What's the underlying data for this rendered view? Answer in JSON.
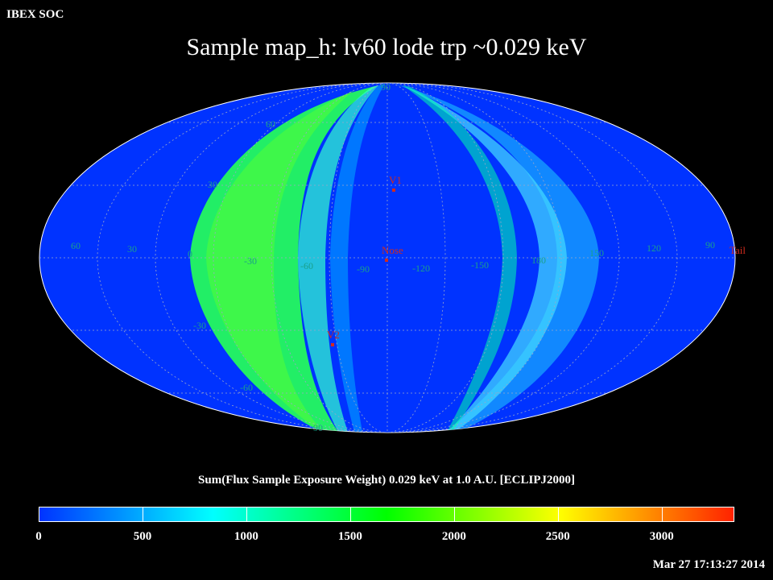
{
  "header": {
    "left_label": "IBEX SOC"
  },
  "map": {
    "title": "Sample map_h: lv60 lode trp ~0.029 keV",
    "projection": "Mollweide (Hammer-type) ellipse",
    "background_color": "#0033ff",
    "longitude_labels": [
      "60",
      "30",
      "0",
      "-30",
      "-60",
      "-90",
      "-120",
      "-150",
      "180",
      "150",
      "120",
      "90"
    ],
    "latitude_labels_top": [
      "90",
      "60",
      "30"
    ],
    "latitude_labels_bottom": [
      "-30",
      "-60",
      "-90"
    ],
    "markers": [
      {
        "label": "V1",
        "color": "#d22b1e"
      },
      {
        "label": "Nose",
        "color": "#d22b1e"
      },
      {
        "label": "V2",
        "color": "#d22b1e"
      },
      {
        "label": "Tail",
        "color": "#d22b1e"
      }
    ]
  },
  "colorbar": {
    "label": "Sum(Flux Sample Exposure Weight)  0.029 keV at 1.0 A.U. [ECLIPJ2000]",
    "ticks": [
      "0",
      "500",
      "1000",
      "1500",
      "2000",
      "2500",
      "3000"
    ],
    "range": [
      0,
      3350
    ],
    "colors": [
      "#0033ff",
      "#00ffff",
      "#00ff00",
      "#ffff00",
      "#ff2200"
    ]
  },
  "footer": {
    "timestamp": "Mar 27 17:13:27 2014"
  }
}
